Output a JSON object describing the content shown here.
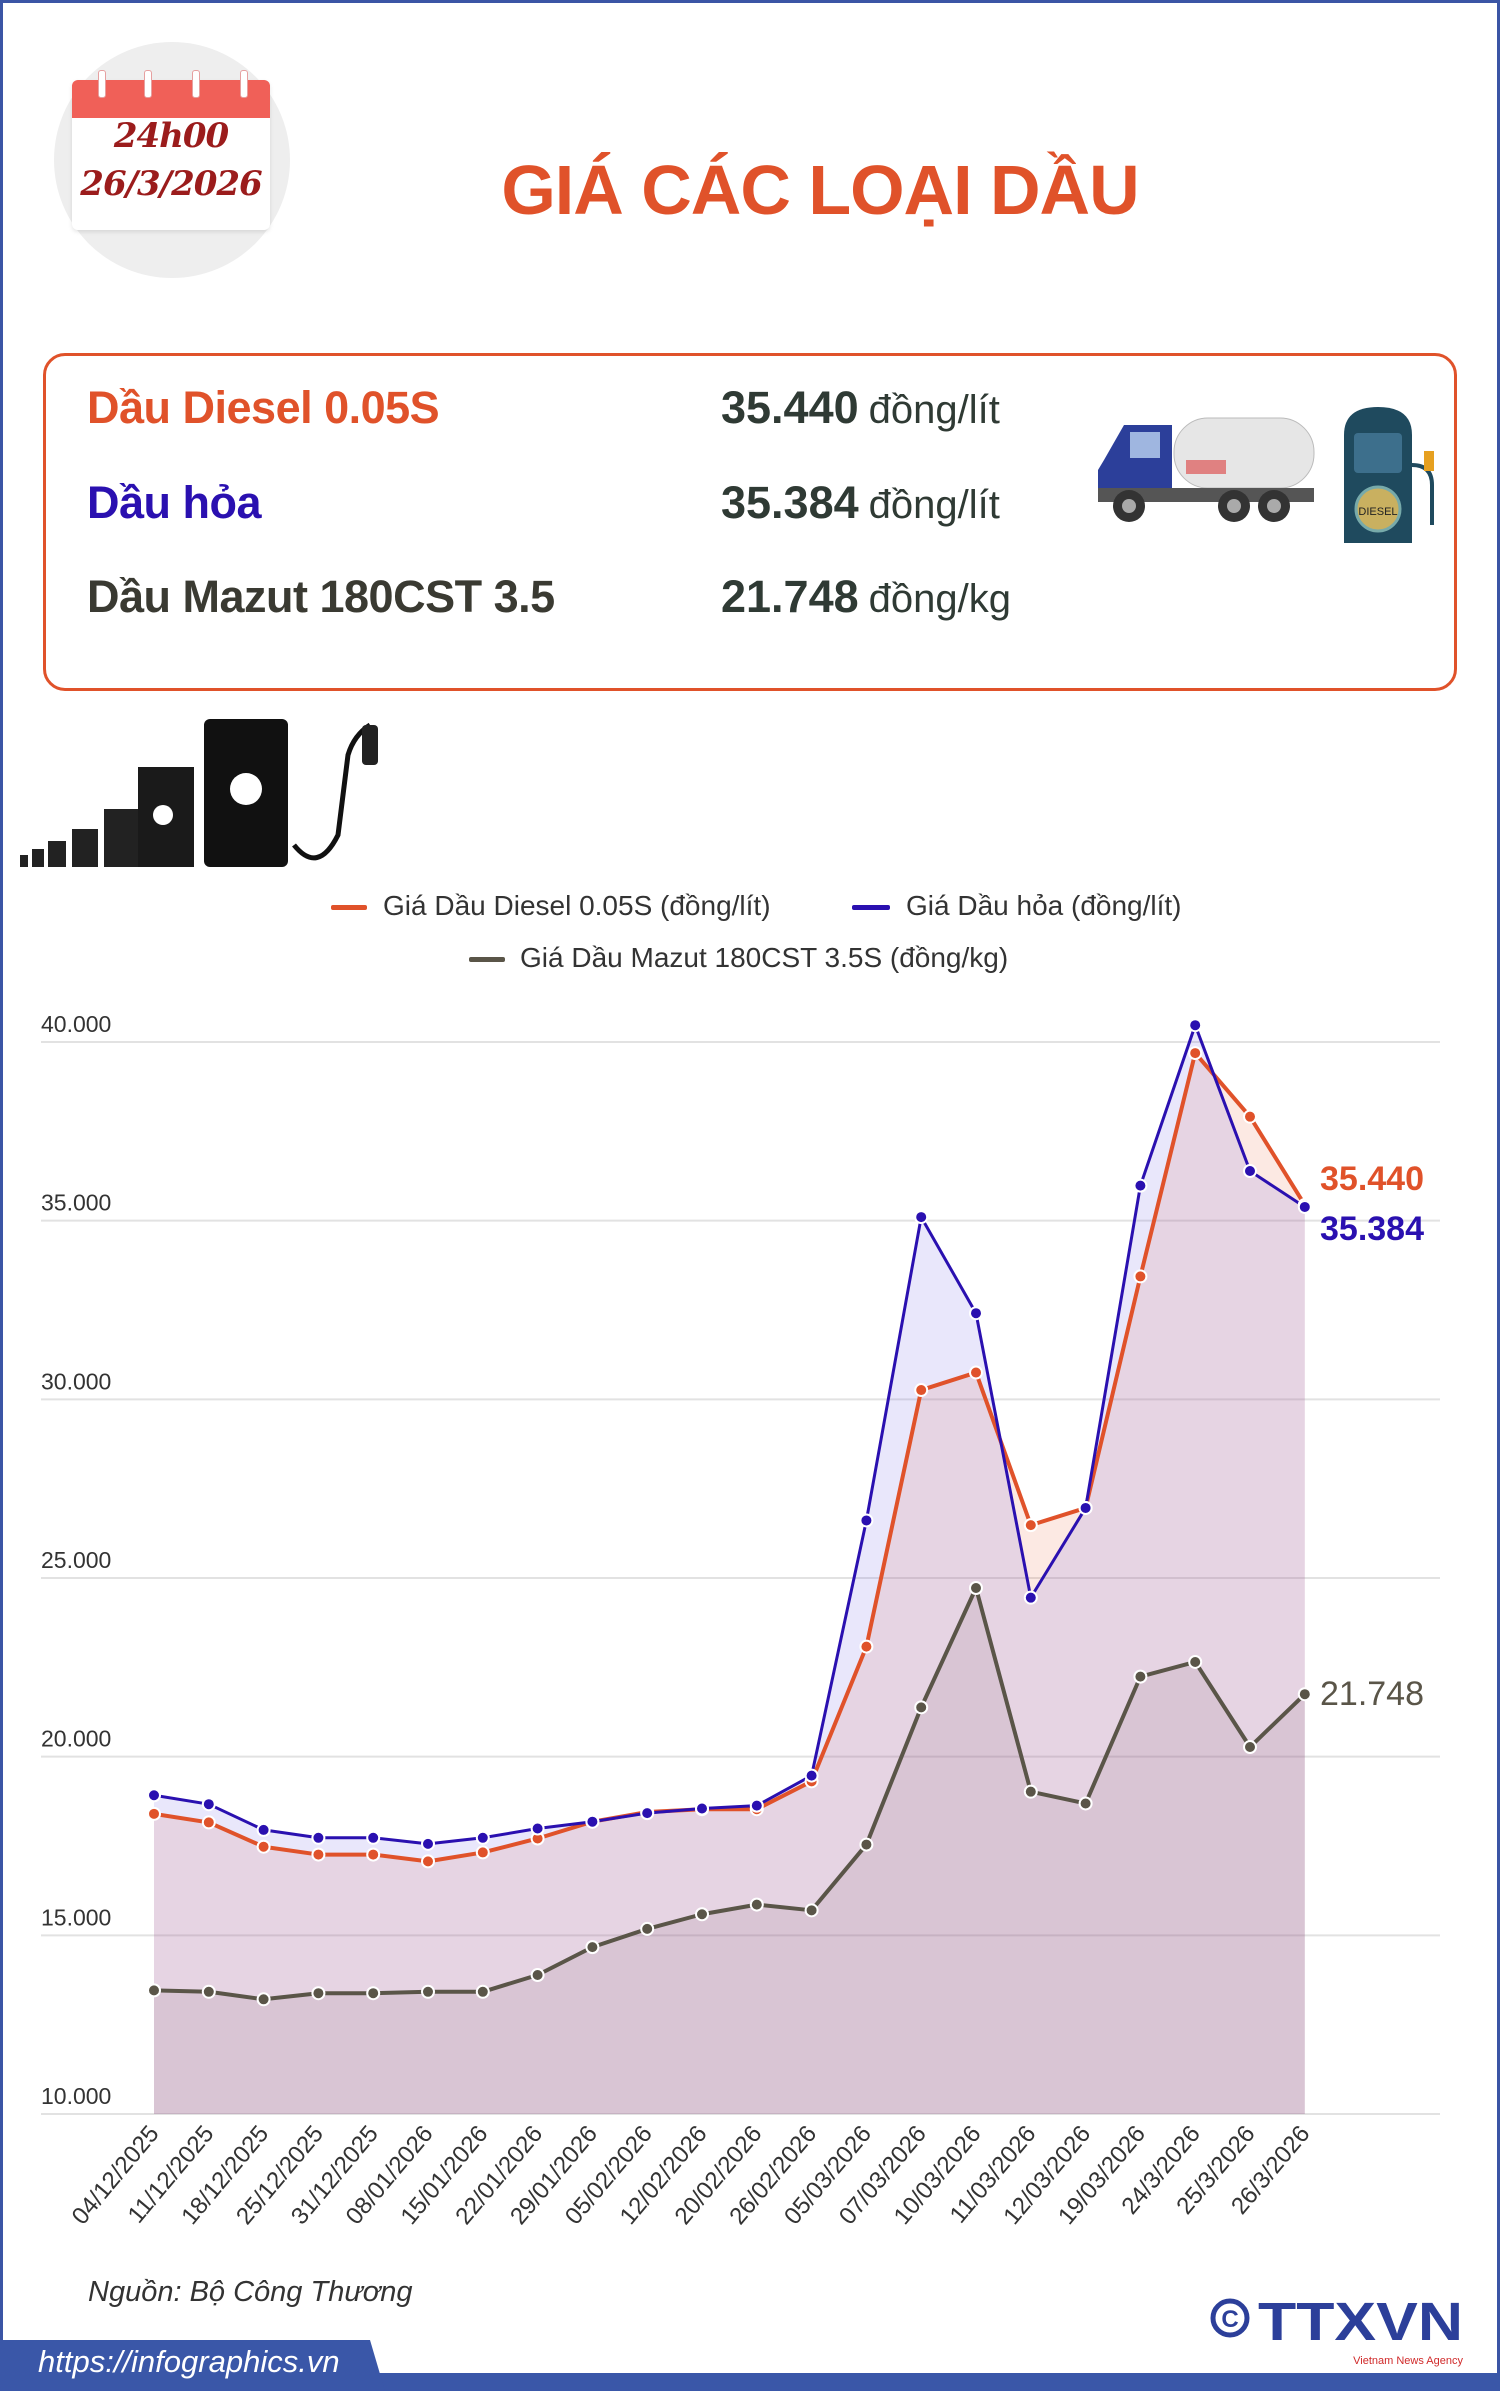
{
  "header": {
    "date_time": "24h00",
    "date": "26/3/2026",
    "title": "GIÁ CÁC LOẠI DẦU"
  },
  "prices": [
    {
      "name": "Dầu Diesel 0.05S",
      "value": "35.440",
      "unit": "đồng/lít",
      "color": "#e0522a"
    },
    {
      "name": "Dầu hỏa",
      "value": "35.384",
      "unit": "đồng/lít",
      "color": "#2a10b0"
    },
    {
      "name": "Dầu Mazut 180CST 3.5",
      "value": "21.748",
      "unit": "đồng/kg",
      "color": "#3a3a32"
    }
  ],
  "illustrations": {
    "truck": "tanker-truck-icon",
    "pump": "fuel-pump-icon",
    "pump_label": "DIESEL",
    "barrels": "oil-barrels-icon"
  },
  "chart_data": {
    "type": "line",
    "categories": [
      "04/12/2025",
      "11/12/2025",
      "18/12/2025",
      "25/12/2025",
      "31/12/2025",
      "08/01/2026",
      "15/01/2026",
      "22/01/2026",
      "29/01/2026",
      "05/02/2026",
      "12/02/2026",
      "20/02/2026",
      "26/02/2026",
      "05/03/2026",
      "07/03/2026",
      "10/03/2026",
      "11/03/2026",
      "12/03/2026",
      "19/03/2026",
      "24/3/2026",
      "25/3/2026",
      "26/3/2026"
    ],
    "series": [
      {
        "name": "Giá Dầu Diesel 0.05S (đồng/lít)",
        "color": "#e0522a",
        "values": [
          18400,
          18160,
          17480,
          17260,
          17260,
          17070,
          17320,
          17710,
          18180,
          18450,
          18530,
          18530,
          19310,
          23080,
          30260,
          30750,
          26480,
          26960,
          33440,
          39690,
          37910,
          35440
        ],
        "end_label": "35.440"
      },
      {
        "name": "Giá Dầu hỏa (đồng/lít)",
        "color": "#2a10b0",
        "values": [
          18920,
          18670,
          17950,
          17730,
          17730,
          17560,
          17730,
          17990,
          18180,
          18420,
          18550,
          18630,
          19470,
          26610,
          35100,
          32410,
          24450,
          26960,
          35980,
          40470,
          36390,
          35384
        ],
        "end_label": "35.384"
      },
      {
        "name": "Giá Dầu Mazut 180CST 3.5S (đồng/kg)",
        "color": "#5a5548",
        "values": [
          13460,
          13420,
          13210,
          13380,
          13380,
          13420,
          13420,
          13890,
          14670,
          15180,
          15590,
          15860,
          15700,
          17540,
          21380,
          24720,
          19020,
          18690,
          22240,
          22650,
          20270,
          21748
        ],
        "end_label": "21.748"
      }
    ],
    "y_ticks": [
      "10.000",
      "15.000",
      "20.000",
      "25.000",
      "30.000",
      "35.000",
      "40.000"
    ],
    "y_tick_values": [
      10000,
      15000,
      20000,
      25000,
      30000,
      35000,
      40000
    ],
    "ylim": [
      10000,
      40000
    ],
    "grid": true,
    "legend": "top-center",
    "xlabel": "",
    "ylabel": "",
    "title": ""
  },
  "footer": {
    "source": "Nguồn: Bộ Công Thương",
    "url": "https://infographics.vn",
    "logo": "TTXVN",
    "logo_sub": "Vietnam News Agency"
  }
}
